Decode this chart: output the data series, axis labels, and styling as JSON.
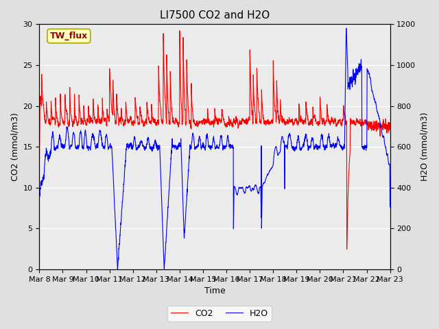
{
  "title": "LI7500 CO2 and H2O",
  "xlabel": "Time",
  "ylabel_left": "CO2 (mmol/m3)",
  "ylabel_right": "H2O (mmol/m3)",
  "co2_color": "#FF0000",
  "h2o_color": "#0000FF",
  "co2_lw": 0.8,
  "h2o_lw": 0.8,
  "ylim_left": [
    0,
    30
  ],
  "ylim_right": [
    0,
    1200
  ],
  "yticks_left": [
    0,
    5,
    10,
    15,
    20,
    25,
    30
  ],
  "yticks_right": [
    0,
    200,
    400,
    600,
    800,
    1000,
    1200
  ],
  "xtick_labels": [
    "Mar 8",
    "Mar 9",
    "Mar 10",
    "Mar 11",
    "Mar 12",
    "Mar 13",
    "Mar 14",
    "Mar 15",
    "Mar 16",
    "Mar 17",
    "Mar 18",
    "Mar 19",
    "Mar 20",
    "Mar 21",
    "Mar 22",
    "Mar 23"
  ],
  "site_label": "TW_flux",
  "legend_co2": "CO2",
  "legend_h2o": "H2O",
  "bg_color": "#E0E0E0",
  "plot_bg_color": "#EBEBEB",
  "title_fontsize": 11,
  "label_fontsize": 9,
  "tick_fontsize": 8,
  "legend_fontsize": 9,
  "n_days": 15,
  "n_points": 2160
}
